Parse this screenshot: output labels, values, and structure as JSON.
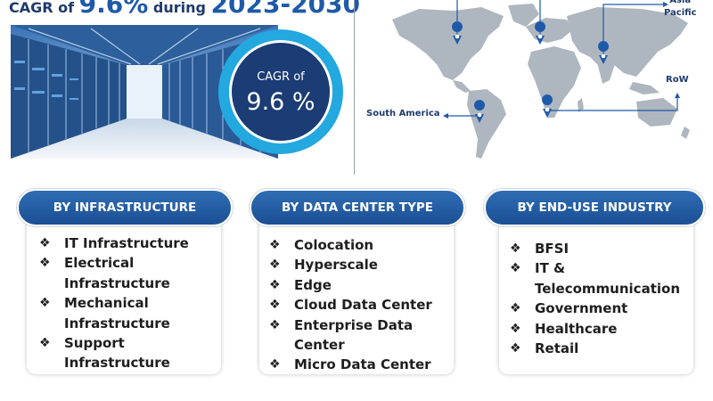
{
  "headline": {
    "prefix": "CAGR of ",
    "value": "9.6%",
    "middle": " during ",
    "period": "2023-2030"
  },
  "cagr_badge": {
    "label": "CAGR of",
    "value": "9.6 %"
  },
  "map": {
    "land_color": "#aeb6bf",
    "pin_color": "#1e5aa8",
    "regions": [
      {
        "label": "Asia\nPacific"
      },
      {
        "label": "RoW"
      },
      {
        "label": "South America"
      }
    ]
  },
  "segments": [
    {
      "title": "BY INFRASTRUCTURE",
      "items": [
        "IT Infrastructure",
        "Electrical\nInfrastructure",
        "Mechanical\nInfrastructure",
        "Support\nInfrastructure"
      ]
    },
    {
      "title": "BY DATA CENTER TYPE",
      "items": [
        "Colocation",
        "Hyperscale",
        "Edge",
        "Cloud Data Center",
        "Enterprise Data Center",
        "Micro Data Center"
      ]
    },
    {
      "title": "BY END-USE INDUSTRY",
      "items": [
        "BFSI",
        "IT &\nTelecommunication",
        "Government",
        "Healthcare",
        "Retail"
      ]
    }
  ],
  "colors": {
    "navy": "#1b3c74",
    "cyan": "#23a8e0",
    "pill_blue": "#1b4f93"
  }
}
